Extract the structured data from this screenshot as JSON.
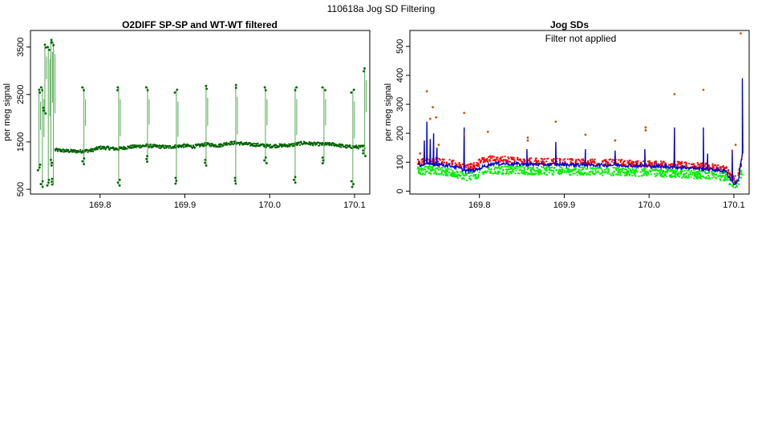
{
  "page": {
    "suptitle": "110618a   Jog SD Filtering"
  },
  "chart_data": [
    {
      "type": "scatter",
      "title": "O2DIFF SP-SP and WT-WT filtered",
      "xlabel": "",
      "ylabel": "per meg signal",
      "xlim": [
        169.718,
        170.118
      ],
      "ylim": [
        400,
        3850
      ],
      "xticks": [
        "169.8",
        "169.9",
        "170.0",
        "170.1"
      ],
      "xtick_values": [
        169.8,
        169.9,
        170.0,
        170.1
      ],
      "yticks": [
        "500",
        "1500",
        "2500",
        "3500"
      ],
      "ytick_values": [
        500,
        1500,
        2500,
        3500
      ],
      "grid": false,
      "series": [
        {
          "color": "#006400",
          "baseline": [
            [
              169.747,
              1330
            ],
            [
              169.76,
              1310
            ],
            [
              169.775,
              1300
            ],
            [
              169.79,
              1320
            ],
            [
              169.8,
              1380
            ],
            [
              169.81,
              1370
            ],
            [
              169.82,
              1350
            ],
            [
              169.83,
              1380
            ],
            [
              169.84,
              1400
            ],
            [
              169.855,
              1420
            ],
            [
              169.87,
              1400
            ],
            [
              169.88,
              1390
            ],
            [
              169.9,
              1420
            ],
            [
              169.91,
              1400
            ],
            [
              169.925,
              1450
            ],
            [
              169.94,
              1420
            ],
            [
              169.95,
              1470
            ],
            [
              169.96,
              1480
            ],
            [
              169.975,
              1450
            ],
            [
              169.99,
              1430
            ],
            [
              170.0,
              1410
            ],
            [
              170.01,
              1420
            ],
            [
              170.025,
              1430
            ],
            [
              170.04,
              1480
            ],
            [
              170.05,
              1460
            ],
            [
              170.06,
              1450
            ],
            [
              170.075,
              1450
            ],
            [
              170.09,
              1400
            ],
            [
              170.105,
              1390
            ],
            [
              170.112,
              1400
            ]
          ],
          "jumps": [
            {
              "x": 169.781,
              "high": 2650,
              "low": 1030
            },
            {
              "x": 169.822,
              "high": 2650,
              "low": 580
            },
            {
              "x": 169.856,
              "high": 2650,
              "low": 1080
            },
            {
              "x": 169.89,
              "high": 2600,
              "low": 620
            },
            {
              "x": 169.925,
              "high": 2680,
              "low": 1000
            },
            {
              "x": 169.96,
              "high": 2700,
              "low": 620
            },
            {
              "x": 169.995,
              "high": 2650,
              "low": 1050
            },
            {
              "x": 170.03,
              "high": 2650,
              "low": 640
            },
            {
              "x": 170.064,
              "high": 2650,
              "low": 1050
            },
            {
              "x": 170.098,
              "high": 2600,
              "low": 550
            }
          ],
          "early_cluster": [
            {
              "x": 169.728,
              "high": 2600,
              "low": 900
            },
            {
              "x": 169.732,
              "high": 2650,
              "low": 550
            },
            {
              "x": 169.735,
              "high": 3550,
              "low": 2100
            },
            {
              "x": 169.739,
              "high": 3500,
              "low": 580
            },
            {
              "x": 169.742,
              "high": 3650,
              "low": 1000
            },
            {
              "x": 169.745,
              "high": 3600,
              "low": 600
            }
          ],
          "end_spike": {
            "x": 170.112,
            "high": 3050,
            "low": 1200
          }
        }
      ]
    },
    {
      "type": "scatter",
      "title": "Jog SDs",
      "annotation": "Filter not applied",
      "xlabel": "",
      "ylabel": "per meg signal",
      "xlim": [
        169.718,
        170.118
      ],
      "ylim": [
        -10,
        555
      ],
      "xticks": [
        "169.8",
        "169.9",
        "170.0",
        "170.1"
      ],
      "xtick_values": [
        169.8,
        169.9,
        170.0,
        170.1
      ],
      "yticks": [
        "0",
        "100",
        "200",
        "300",
        "400",
        "500"
      ],
      "ytick_values": [
        0,
        100,
        200,
        300,
        400,
        500
      ],
      "grid": false,
      "series": [
        {
          "color": "#ff0000",
          "values": [
            [
              169.727,
              95
            ],
            [
              169.74,
              100
            ],
            [
              169.755,
              100
            ],
            [
              169.77,
              90
            ],
            [
              169.785,
              75
            ],
            [
              169.795,
              85
            ],
            [
              169.805,
              105
            ],
            [
              169.815,
              110
            ],
            [
              169.83,
              105
            ],
            [
              169.85,
              100
            ],
            [
              169.87,
              98
            ],
            [
              169.9,
              97
            ],
            [
              169.93,
              95
            ],
            [
              169.96,
              95
            ],
            [
              169.99,
              90
            ],
            [
              170.02,
              88
            ],
            [
              170.05,
              85
            ],
            [
              170.07,
              80
            ],
            [
              170.09,
              75
            ],
            [
              170.1,
              35
            ],
            [
              170.105,
              45
            ],
            [
              170.11,
              110
            ]
          ]
        },
        {
          "color": "#00ee00",
          "values": [
            [
              169.727,
              70
            ],
            [
              169.74,
              72
            ],
            [
              169.755,
              70
            ],
            [
              169.77,
              60
            ],
            [
              169.785,
              50
            ],
            [
              169.795,
              55
            ],
            [
              169.805,
              68
            ],
            [
              169.815,
              72
            ],
            [
              169.83,
              72
            ],
            [
              169.85,
              72
            ],
            [
              169.87,
              70
            ],
            [
              169.9,
              70
            ],
            [
              169.93,
              68
            ],
            [
              169.96,
              68
            ],
            [
              169.99,
              65
            ],
            [
              170.02,
              62
            ],
            [
              170.05,
              58
            ],
            [
              170.07,
              55
            ],
            [
              170.09,
              50
            ],
            [
              170.1,
              20
            ],
            [
              170.105,
              30
            ],
            [
              170.11,
              70
            ]
          ]
        },
        {
          "color": "#0000cc",
          "values": [
            [
              169.727,
              90
            ],
            [
              169.74,
              92
            ],
            [
              169.755,
              92
            ],
            [
              169.77,
              85
            ],
            [
              169.785,
              70
            ],
            [
              169.795,
              72
            ],
            [
              169.805,
              85
            ],
            [
              169.815,
              95
            ],
            [
              169.83,
              95
            ],
            [
              169.85,
              93
            ],
            [
              169.87,
              92
            ],
            [
              169.9,
              92
            ],
            [
              169.93,
              90
            ],
            [
              169.96,
              90
            ],
            [
              169.99,
              87
            ],
            [
              170.02,
              85
            ],
            [
              170.05,
              80
            ],
            [
              170.07,
              75
            ],
            [
              170.09,
              70
            ],
            [
              170.1,
              25
            ],
            [
              170.105,
              35
            ],
            [
              170.11,
              130
            ]
          ],
          "spikes": [
            [
              169.735,
              175
            ],
            [
              169.738,
              240
            ],
            [
              169.742,
              180
            ],
            [
              169.746,
              200
            ],
            [
              169.75,
              150
            ],
            [
              169.782,
              220
            ],
            [
              169.856,
              145
            ],
            [
              169.89,
              170
            ],
            [
              169.925,
              145
            ],
            [
              169.96,
              140
            ],
            [
              169.995,
              145
            ],
            [
              170.03,
              220
            ],
            [
              170.064,
              220
            ],
            [
              170.069,
              130
            ],
            [
              170.098,
              140
            ],
            [
              170.11,
              390
            ]
          ]
        },
        {
          "color": "#cc5500",
          "values": [
            [
              169.73,
              130
            ],
            [
              169.738,
              345
            ],
            [
              169.742,
              250
            ],
            [
              169.745,
              290
            ],
            [
              169.749,
              255
            ],
            [
              169.752,
              160
            ],
            [
              169.782,
              270
            ],
            [
              169.782,
              195
            ],
            [
              169.81,
              205
            ],
            [
              169.857,
              185
            ],
            [
              169.857,
              175
            ],
            [
              169.89,
              240
            ],
            [
              169.925,
              195
            ],
            [
              169.96,
              175
            ],
            [
              169.996,
              220
            ],
            [
              169.996,
              210
            ],
            [
              170.03,
              335
            ],
            [
              170.064,
              350
            ],
            [
              170.098,
              140
            ],
            [
              170.102,
              160
            ],
            [
              170.108,
              545
            ]
          ]
        }
      ]
    }
  ]
}
